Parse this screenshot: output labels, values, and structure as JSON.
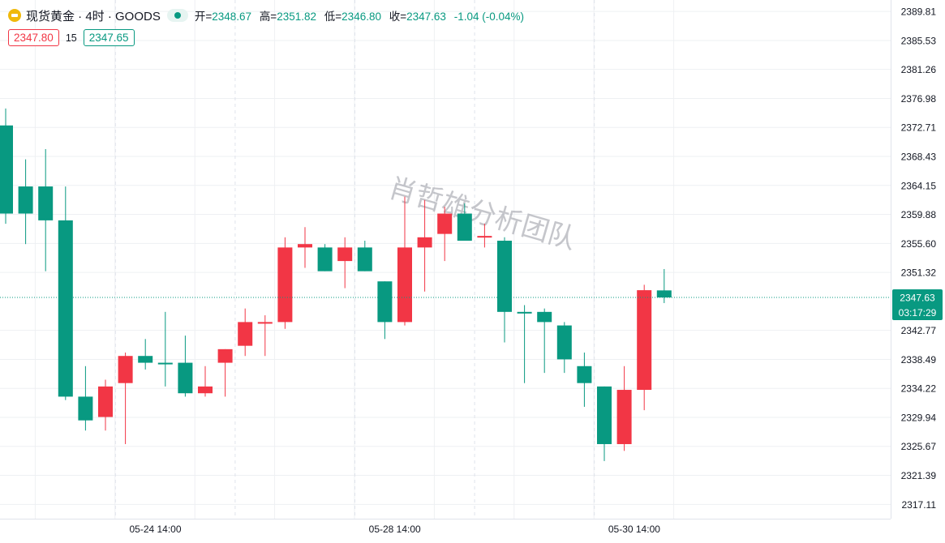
{
  "header": {
    "symbol": "现货黄金 · 4时 · GOODS",
    "open_label": "开=",
    "open": "2348.67",
    "high_label": "高=",
    "high": "2351.82",
    "low_label": "低=",
    "low": "2346.80",
    "close_label": "收=",
    "close": "2347.63",
    "change": "-1.04 (-0.04%)",
    "sell_price": "2347.80",
    "spread": "15",
    "buy_price": "2347.65"
  },
  "watermark": "肖哲雄分析团队",
  "colors": {
    "up": "#f23645",
    "down": "#089981",
    "grid": "#eef0f3"
  },
  "chart_data": {
    "type": "candlestick",
    "title": "",
    "y_axis": {
      "side": "right",
      "ylim": [
        2315.0,
        2391.5
      ],
      "ticks": [
        2389.81,
        2385.53,
        2381.26,
        2376.98,
        2372.71,
        2368.43,
        2364.15,
        2359.88,
        2355.6,
        2351.32,
        2342.77,
        2338.49,
        2334.22,
        2329.94,
        2325.67,
        2321.39,
        2317.11
      ]
    },
    "x_axis": {
      "labels": [
        {
          "label": "05-24 14:00",
          "index": 7
        },
        {
          "label": "05-28 14:00",
          "index": 19
        },
        {
          "label": "05-30 14:00",
          "index": 31
        }
      ]
    },
    "last_price": {
      "value": "2347.63",
      "value_num": 2347.63,
      "countdown": "03:17:29"
    },
    "candles": [
      {
        "o": 2373.0,
        "h": 2375.5,
        "l": 2358.5,
        "c": 2360.0
      },
      {
        "o": 2364.0,
        "h": 2368.0,
        "l": 2355.5,
        "c": 2360.0
      },
      {
        "o": 2364.0,
        "h": 2369.5,
        "l": 2351.5,
        "c": 2359.0
      },
      {
        "o": 2359.0,
        "h": 2364.0,
        "l": 2332.5,
        "c": 2333.0
      },
      {
        "o": 2333.0,
        "h": 2337.5,
        "l": 2328.0,
        "c": 2329.5
      },
      {
        "o": 2330.0,
        "h": 2335.5,
        "l": 2328.0,
        "c": 2334.5
      },
      {
        "o": 2335.0,
        "h": 2339.5,
        "l": 2326.0,
        "c": 2339.0
      },
      {
        "o": 2339.0,
        "h": 2341.5,
        "l": 2337.0,
        "c": 2338.0
      },
      {
        "o": 2338.0,
        "h": 2345.5,
        "l": 2334.5,
        "c": 2337.8
      },
      {
        "o": 2338.0,
        "h": 2342.0,
        "l": 2333.0,
        "c": 2333.5
      },
      {
        "o": 2333.5,
        "h": 2337.5,
        "l": 2333.0,
        "c": 2334.5
      },
      {
        "o": 2338.0,
        "h": 2340.0,
        "l": 2333.0,
        "c": 2340.0
      },
      {
        "o": 2340.5,
        "h": 2346.0,
        "l": 2339.0,
        "c": 2344.0
      },
      {
        "o": 2343.8,
        "h": 2345.0,
        "l": 2339.0,
        "c": 2344.0
      },
      {
        "o": 2344.0,
        "h": 2356.5,
        "l": 2343.0,
        "c": 2355.0
      },
      {
        "o": 2355.0,
        "h": 2358.0,
        "l": 2352.0,
        "c": 2355.5
      },
      {
        "o": 2355.0,
        "h": 2355.5,
        "l": 2351.5,
        "c": 2351.5
      },
      {
        "o": 2353.0,
        "h": 2356.5,
        "l": 2349.0,
        "c": 2355.0
      },
      {
        "o": 2355.0,
        "h": 2356.0,
        "l": 2351.5,
        "c": 2351.5
      },
      {
        "o": 2350.0,
        "h": 2350.0,
        "l": 2341.5,
        "c": 2344.0
      },
      {
        "o": 2344.0,
        "h": 2362.5,
        "l": 2343.5,
        "c": 2355.0
      },
      {
        "o": 2355.0,
        "h": 2362.0,
        "l": 2348.5,
        "c": 2356.5
      },
      {
        "o": 2357.0,
        "h": 2361.0,
        "l": 2353.0,
        "c": 2360.0
      },
      {
        "o": 2360.0,
        "h": 2361.5,
        "l": 2356.0,
        "c": 2356.0
      },
      {
        "o": 2356.5,
        "h": 2358.5,
        "l": 2355.0,
        "c": 2356.7
      },
      {
        "o": 2356.0,
        "h": 2356.5,
        "l": 2341.0,
        "c": 2345.5
      },
      {
        "o": 2345.5,
        "h": 2346.5,
        "l": 2335.0,
        "c": 2345.4
      },
      {
        "o": 2345.5,
        "h": 2346.0,
        "l": 2336.5,
        "c": 2344.0
      },
      {
        "o": 2343.5,
        "h": 2344.0,
        "l": 2336.5,
        "c": 2338.5
      },
      {
        "o": 2337.5,
        "h": 2339.5,
        "l": 2331.5,
        "c": 2335.0
      },
      {
        "o": 2334.5,
        "h": 2334.5,
        "l": 2323.5,
        "c": 2326.0
      },
      {
        "o": 2326.0,
        "h": 2337.5,
        "l": 2325.0,
        "c": 2334.0
      },
      {
        "o": 2334.0,
        "h": 2349.5,
        "l": 2331.0,
        "c": 2348.7
      },
      {
        "o": 2348.67,
        "h": 2351.82,
        "l": 2346.8,
        "c": 2347.63
      }
    ]
  }
}
